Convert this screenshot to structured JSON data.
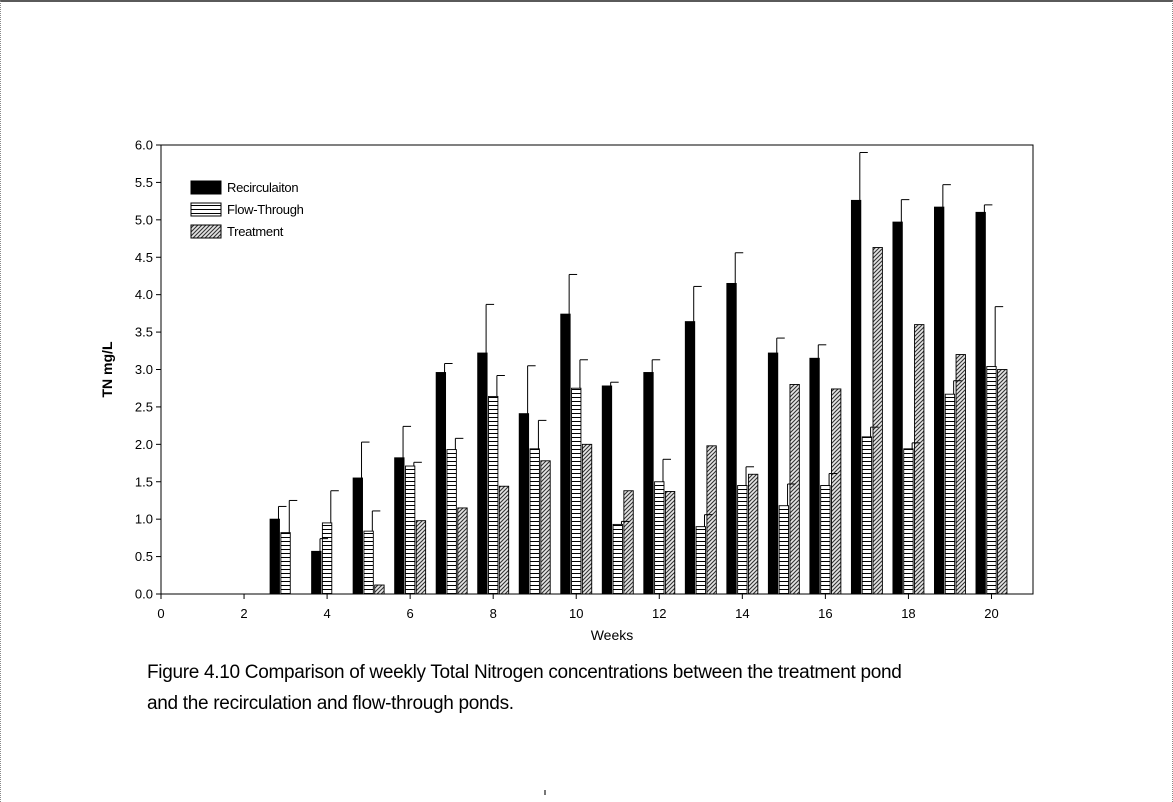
{
  "chart_data": {
    "type": "bar",
    "title": "",
    "xlabel": "Weeks",
    "ylabel": "TN mg/L",
    "ylim": [
      0,
      6
    ],
    "xlim": [
      0,
      21
    ],
    "x_ticks": [
      0,
      2,
      4,
      6,
      8,
      10,
      12,
      14,
      16,
      18,
      20
    ],
    "x_tick_labels": [
      "0",
      "2",
      "4",
      "6",
      "8",
      "10",
      "12",
      "14",
      "16",
      "18",
      "20"
    ],
    "y_ticks": [
      0,
      0.5,
      1,
      1.5,
      2,
      2.5,
      3,
      3.5,
      4,
      4.5,
      5,
      5.5,
      6
    ],
    "y_tick_labels": [
      "0.0",
      "0.5",
      "1.0",
      "1.5",
      "2.0",
      "2.5",
      "3.0",
      "3.5",
      "4.0",
      "4.5",
      "5.0",
      "5.5",
      "6.0"
    ],
    "legend_position": "top-left",
    "weeks": [
      3,
      4,
      5,
      6,
      7,
      8,
      9,
      10,
      11,
      12,
      13,
      14,
      15,
      16,
      17,
      18,
      19,
      20
    ],
    "series": [
      {
        "name": "Recirculaiton",
        "pattern": "solid",
        "color": "#000000",
        "values": [
          1.0,
          0.57,
          1.55,
          1.82,
          2.96,
          3.22,
          2.41,
          3.74,
          2.78,
          2.96,
          3.64,
          4.15,
          3.22,
          3.15,
          5.26,
          4.97,
          5.17,
          5.1
        ],
        "error": [
          0.17,
          0.17,
          0.48,
          0.42,
          0.12,
          0.65,
          0.64,
          0.53,
          0.05,
          0.17,
          0.47,
          0.41,
          0.2,
          0.18,
          0.64,
          0.3,
          0.3,
          0.1
        ]
      },
      {
        "name": "Flow-Through",
        "pattern": "horizontal-lines",
        "color": "#000000",
        "values": [
          0.82,
          0.95,
          0.84,
          1.71,
          1.93,
          2.64,
          1.94,
          2.75,
          0.93,
          1.5,
          0.9,
          1.45,
          1.18,
          1.45,
          2.1,
          1.94,
          2.67,
          3.04
        ],
        "error": [
          0.43,
          0.43,
          0.27,
          0.05,
          0.15,
          0.28,
          0.38,
          0.38,
          0.04,
          0.3,
          0.16,
          0.25,
          0.29,
          0.16,
          0.13,
          0.08,
          0.18,
          0.8
        ]
      },
      {
        "name": "Treatment",
        "pattern": "diagonal-hatch",
        "color": "#000000",
        "values": [
          null,
          null,
          0.12,
          0.98,
          1.15,
          1.44,
          1.78,
          2.0,
          1.38,
          1.37,
          1.98,
          1.6,
          2.8,
          2.74,
          4.63,
          3.6,
          3.2,
          3.0
        ],
        "error": [
          null,
          null,
          0,
          0,
          0,
          0,
          0,
          0,
          0,
          0,
          0,
          0,
          0,
          0,
          0,
          0,
          0,
          0
        ]
      }
    ]
  },
  "caption": {
    "line1": "Figure 4.10  Comparison of weekly Total Nitrogen concentrations between the treatment pond",
    "line2": "and the recirculation and flow-through ponds."
  }
}
